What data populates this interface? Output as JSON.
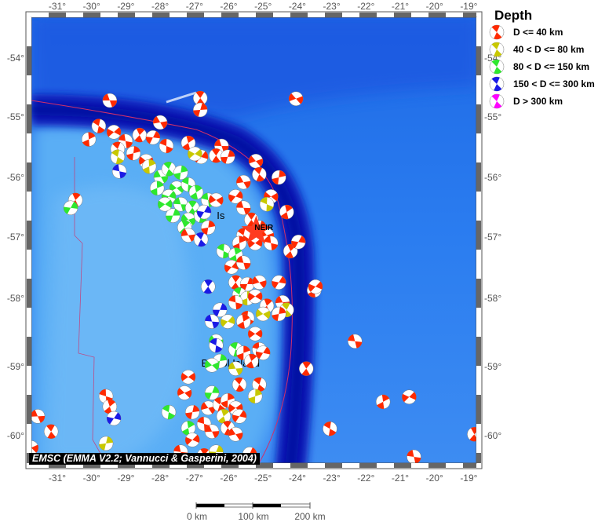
{
  "map": {
    "lon_ticks": [
      -31,
      -30,
      -29,
      -28,
      -27,
      -26,
      -25,
      -24,
      -23,
      -22,
      -21,
      -20,
      -19
    ],
    "lat_ticks": [
      -54,
      -55,
      -56,
      -57,
      -58,
      -59,
      -60
    ],
    "degree_symbol": "°",
    "labels": [
      {
        "text": "Is",
        "lon": -26.35,
        "lat": -56.7
      },
      {
        "text": "Bristol Island",
        "lon": -26.8,
        "lat": -59.0
      },
      {
        "text": "NEIR",
        "lon": -25.25,
        "lat": -56.88
      }
    ],
    "station_marker": {
      "name": "NEIR",
      "lon": -25.2,
      "lat": -56.9,
      "color": "#ff3b1f"
    },
    "colors": {
      "red": "#ff2a00",
      "yellow": "#c8c800",
      "green": "#2ee82e",
      "blue": "#1a1ae6",
      "magenta": "#ff00ff",
      "plate_boundary": "#d0306a"
    },
    "events": [
      [
        -29.47,
        -54.72,
        "r"
      ],
      [
        -26.83,
        -54.68,
        "r"
      ],
      [
        -26.83,
        -54.88,
        "r"
      ],
      [
        -24.04,
        -54.69,
        "r"
      ],
      [
        -29.79,
        -55.15,
        "r"
      ],
      [
        -30.08,
        -55.37,
        "r"
      ],
      [
        -29.35,
        -55.25,
        "r"
      ],
      [
        -29.01,
        -55.4,
        "r"
      ],
      [
        -28.6,
        -55.3,
        "r"
      ],
      [
        -28.21,
        -55.34,
        "r"
      ],
      [
        -28.0,
        -55.09,
        "r"
      ],
      [
        -29.24,
        -55.53,
        "r"
      ],
      [
        -28.78,
        -55.6,
        "r"
      ],
      [
        -28.41,
        -55.73,
        "r"
      ],
      [
        -27.82,
        -55.48,
        "r"
      ],
      [
        -27.18,
        -55.43,
        "r"
      ],
      [
        -26.81,
        -55.66,
        "r"
      ],
      [
        -26.21,
        -55.48,
        "r"
      ],
      [
        -26.37,
        -55.64,
        "r"
      ],
      [
        -26.03,
        -55.66,
        "r"
      ],
      [
        -25.21,
        -55.73,
        "r"
      ],
      [
        -29.24,
        -55.66,
        "y"
      ],
      [
        -28.32,
        -55.82,
        "y"
      ],
      [
        -26.99,
        -55.61,
        "y"
      ],
      [
        -29.19,
        -55.9,
        "b"
      ],
      [
        -30.47,
        -56.38,
        "r"
      ],
      [
        -30.61,
        -56.51,
        "g"
      ],
      [
        -25.57,
        -56.08,
        "r"
      ],
      [
        -25.11,
        -55.95,
        "r"
      ],
      [
        -24.54,
        -56.0,
        "r"
      ],
      [
        -24.77,
        -56.32,
        "r"
      ],
      [
        -24.89,
        -56.45,
        "y"
      ],
      [
        -24.31,
        -56.58,
        "r"
      ],
      [
        -25.8,
        -56.32,
        "r"
      ],
      [
        -25.57,
        -56.51,
        "r"
      ],
      [
        -25.34,
        -56.71,
        "r"
      ],
      [
        -25.11,
        -56.84,
        "r"
      ],
      [
        -24.89,
        -56.97,
        "r"
      ],
      [
        -25.57,
        -56.97,
        "r"
      ],
      [
        -25.69,
        -57.1,
        "r"
      ],
      [
        -25.23,
        -57.1,
        "r"
      ],
      [
        -24.77,
        -57.1,
        "r"
      ],
      [
        -24.2,
        -57.23,
        "r"
      ],
      [
        -23.97,
        -57.08,
        "r"
      ],
      [
        -27.98,
        -55.99,
        "g"
      ],
      [
        -27.75,
        -55.86,
        "g"
      ],
      [
        -27.4,
        -55.92,
        "g"
      ],
      [
        -27.52,
        -56.18,
        "g"
      ],
      [
        -27.18,
        -56.12,
        "g"
      ],
      [
        -26.95,
        -56.25,
        "g"
      ],
      [
        -27.75,
        -56.32,
        "g"
      ],
      [
        -27.4,
        -56.45,
        "g"
      ],
      [
        -27.06,
        -56.51,
        "g"
      ],
      [
        -27.63,
        -56.64,
        "g"
      ],
      [
        -27.18,
        -56.71,
        "g"
      ],
      [
        -26.81,
        -56.64,
        "g"
      ],
      [
        -28.09,
        -56.18,
        "g"
      ],
      [
        -27.86,
        -56.45,
        "g"
      ],
      [
        -26.6,
        -56.38,
        "g"
      ],
      [
        -27.29,
        -56.84,
        "g"
      ],
      [
        -26.72,
        -56.58,
        "b"
      ],
      [
        -27.18,
        -56.97,
        "r"
      ],
      [
        -26.81,
        -57.04,
        "b"
      ],
      [
        -26.6,
        -56.84,
        "r"
      ],
      [
        -26.37,
        -56.38,
        "r"
      ],
      [
        -26.15,
        -57.23,
        "g"
      ],
      [
        -25.8,
        -57.29,
        "g"
      ],
      [
        -25.92,
        -57.49,
        "r"
      ],
      [
        -25.57,
        -57.42,
        "r"
      ],
      [
        -25.8,
        -57.74,
        "r"
      ],
      [
        -25.46,
        -57.77,
        "r"
      ],
      [
        -25.11,
        -57.74,
        "r"
      ],
      [
        -25.69,
        -57.94,
        "g"
      ],
      [
        -25.46,
        -58.0,
        "y"
      ],
      [
        -25.23,
        -57.97,
        "r"
      ],
      [
        -25.8,
        -58.06,
        "r"
      ],
      [
        -24.89,
        -58.11,
        "r"
      ],
      [
        -24.54,
        -57.74,
        "r"
      ],
      [
        -24.43,
        -58.06,
        "r"
      ],
      [
        -24.31,
        -58.17,
        "y"
      ],
      [
        -24.54,
        -58.23,
        "r"
      ],
      [
        -25.0,
        -58.23,
        "y"
      ],
      [
        -25.46,
        -58.29,
        "r"
      ],
      [
        -25.57,
        -58.34,
        "r"
      ],
      [
        -26.03,
        -58.34,
        "y"
      ],
      [
        -26.49,
        -58.34,
        "b"
      ],
      [
        -26.6,
        -57.81,
        "b"
      ],
      [
        -26.26,
        -58.17,
        "b"
      ],
      [
        -26.37,
        -58.63,
        "g"
      ],
      [
        -25.8,
        -58.75,
        "g"
      ],
      [
        -25.57,
        -58.8,
        "r"
      ],
      [
        -25.23,
        -58.52,
        "r"
      ],
      [
        -25.11,
        -58.75,
        "r"
      ],
      [
        -25.34,
        -58.92,
        "r"
      ],
      [
        -25.0,
        -58.8,
        "r"
      ],
      [
        -25.8,
        -59.03,
        "y"
      ],
      [
        -25.69,
        -59.26,
        "r"
      ],
      [
        -26.26,
        -58.92,
        "g"
      ],
      [
        -26.49,
        -58.98,
        "g"
      ],
      [
        -26.37,
        -58.69,
        "b"
      ],
      [
        -23.51,
        -57.87,
        "r"
      ],
      [
        -23.47,
        -57.81,
        "r"
      ],
      [
        -22.32,
        -58.63,
        "r"
      ],
      [
        -23.74,
        -59.03,
        "r"
      ],
      [
        -26.49,
        -59.38,
        "g"
      ],
      [
        -26.6,
        -59.6,
        "r"
      ],
      [
        -26.26,
        -59.55,
        "r"
      ],
      [
        -26.03,
        -59.49,
        "r"
      ],
      [
        -25.8,
        -59.6,
        "r"
      ],
      [
        -26.72,
        -59.83,
        "r"
      ],
      [
        -26.15,
        -59.72,
        "y"
      ],
      [
        -25.69,
        -59.72,
        "r"
      ],
      [
        -26.49,
        -59.94,
        "r"
      ],
      [
        -26.03,
        -59.89,
        "r"
      ],
      [
        -27.06,
        -59.66,
        "r"
      ],
      [
        -27.29,
        -59.38,
        "r"
      ],
      [
        -27.75,
        -59.66,
        "g"
      ],
      [
        -27.18,
        -59.89,
        "g"
      ],
      [
        -27.06,
        -60.06,
        "r"
      ],
      [
        -27.4,
        -60.23,
        "r"
      ],
      [
        -26.72,
        -60.28,
        "r"
      ],
      [
        -26.37,
        -60.23,
        "y"
      ],
      [
        -25.8,
        -59.98,
        "r"
      ],
      [
        -25.11,
        -59.26,
        "r"
      ],
      [
        -25.23,
        -59.43,
        "y"
      ],
      [
        -27.18,
        -59.15,
        "r"
      ],
      [
        -29.58,
        -59.43,
        "r"
      ],
      [
        -29.47,
        -59.58,
        "r"
      ],
      [
        -29.35,
        -59.75,
        "b"
      ],
      [
        -31.57,
        -59.72,
        "r"
      ],
      [
        -31.18,
        -59.94,
        "r"
      ],
      [
        -29.58,
        -60.11,
        "y"
      ],
      [
        -31.76,
        -60.17,
        "r"
      ],
      [
        -23.05,
        -59.9,
        "r"
      ],
      [
        -21.5,
        -59.51,
        "r"
      ],
      [
        -20.74,
        -59.44,
        "r"
      ],
      [
        -20.6,
        -60.3,
        "r"
      ],
      [
        -18.84,
        -59.98,
        "r"
      ],
      [
        -25.39,
        -60.26,
        "r"
      ]
    ]
  },
  "legend": {
    "title": "Depth",
    "items": [
      {
        "label": "D <= 40 km",
        "color": "#ff2a00"
      },
      {
        "label": "40 < D <= 80 km",
        "color": "#c8c800"
      },
      {
        "label": "80 < D <= 150 km",
        "color": "#2ee82e"
      },
      {
        "label": "150 < D <= 300 km",
        "color": "#1a1ae6"
      },
      {
        "label": "D > 300 km",
        "color": "#ff00ff"
      }
    ]
  },
  "credit": "EMSC (EMMA V2.2; Vannucci & Gasperini, 2004)",
  "scale_bar": {
    "labels": [
      "0 km",
      "100 km",
      "200 km"
    ]
  }
}
